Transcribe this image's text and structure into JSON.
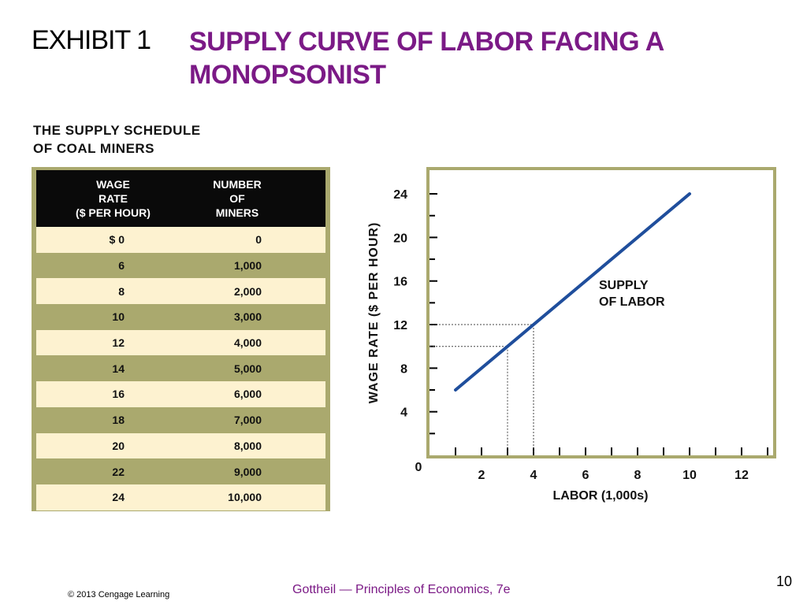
{
  "header": {
    "exhibit": "EXHIBIT 1",
    "title": "SUPPLY CURVE OF LABOR FACING A MONOPSONIST"
  },
  "schedule": {
    "heading_line1": "THE SUPPLY SCHEDULE",
    "heading_line2": "OF COAL MINERS",
    "col1_header": [
      "WAGE",
      "RATE",
      "($ PER HOUR)"
    ],
    "col2_header": [
      "NUMBER",
      "OF",
      "MINERS"
    ],
    "rows": [
      {
        "wage": "$  0",
        "miners": "0"
      },
      {
        "wage": "6",
        "miners": "1,000"
      },
      {
        "wage": "8",
        "miners": "2,000"
      },
      {
        "wage": "10",
        "miners": "3,000"
      },
      {
        "wage": "12",
        "miners": "4,000"
      },
      {
        "wage": "14",
        "miners": "5,000"
      },
      {
        "wage": "16",
        "miners": "6,000"
      },
      {
        "wage": "18",
        "miners": "7,000"
      },
      {
        "wage": "20",
        "miners": "8,000"
      },
      {
        "wage": "22",
        "miners": "9,000"
      },
      {
        "wage": "24",
        "miners": "10,000"
      }
    ]
  },
  "chart_data": {
    "type": "line",
    "xlabel": "LABOR (1,000s)",
    "ylabel": "WAGE RATE ($ PER HOUR)",
    "xlim": [
      0,
      12.8
    ],
    "ylim": [
      0,
      25.5
    ],
    "x_ticks": [
      2,
      4,
      6,
      8,
      10,
      12
    ],
    "y_ticks": [
      4,
      8,
      12,
      16,
      20,
      24
    ],
    "origin_label": "0",
    "series": [
      {
        "name": "SUPPLY OF LABOR",
        "x": [
          1,
          10
        ],
        "y": [
          6,
          24
        ],
        "color": "#1f4e9c"
      }
    ],
    "series_label_lines": [
      "SUPPLY",
      "OF LABOR"
    ],
    "reference_points": [
      {
        "x": 3,
        "y": 10
      },
      {
        "x": 4,
        "y": 12
      }
    ]
  },
  "footer": {
    "copyright": "© 2013 Cengage Learning",
    "book": "Gottheil — Principles of Economics, 7e",
    "page": "10"
  }
}
